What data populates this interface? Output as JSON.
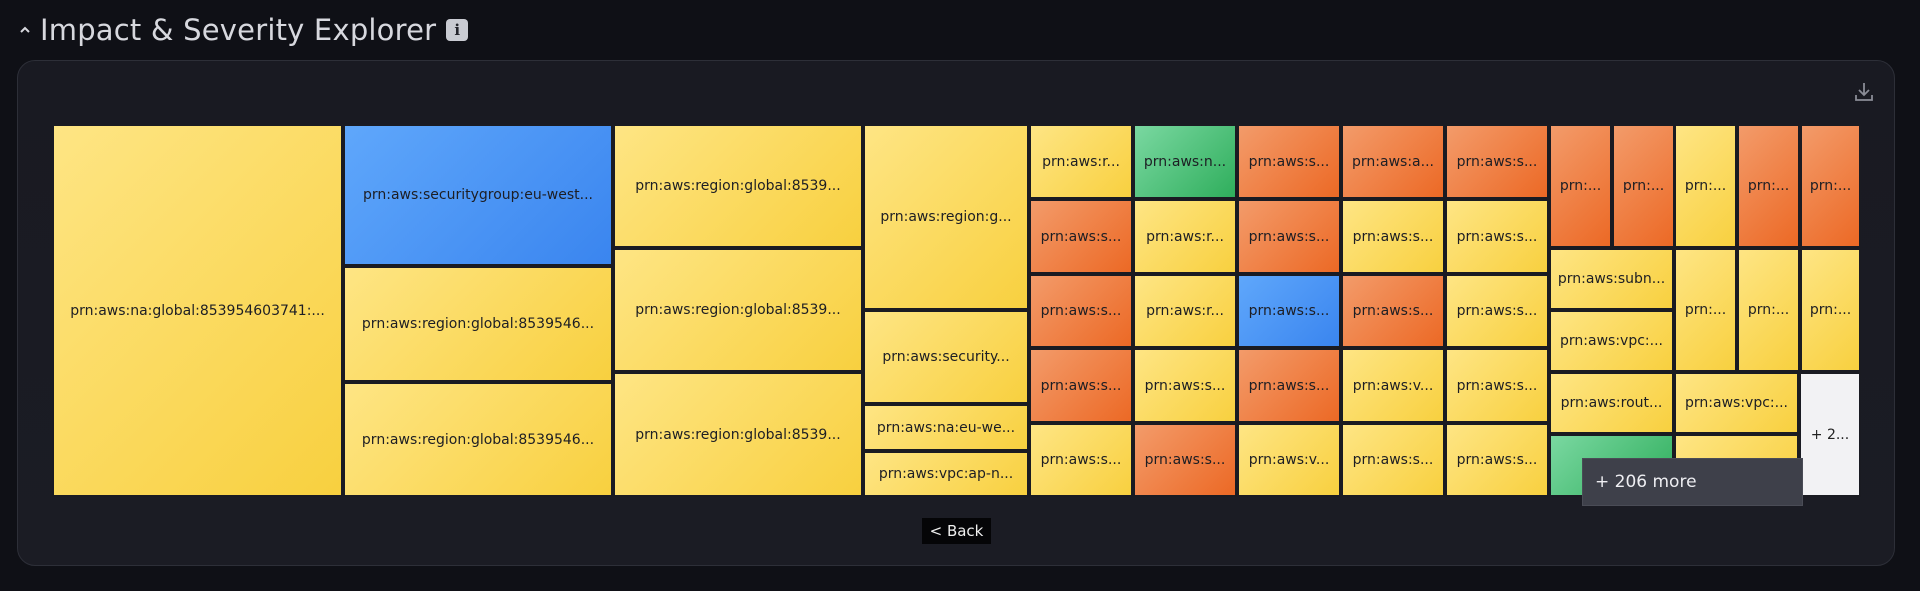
{
  "header": {
    "title": "Impact & Severity Explorer",
    "info_label": "i",
    "collapse_icon": "chevron-up-icon"
  },
  "panel": {
    "download_icon": "download-icon"
  },
  "treemap": {
    "tiles": [
      {
        "label": "prn:aws:na:global:853954603741:...",
        "color": "yellow"
      },
      {
        "label": "prn:aws:securitygroup:eu-west...",
        "color": "blue"
      },
      {
        "label": "prn:aws:region:global:8539546...",
        "color": "yellow"
      },
      {
        "label": "prn:aws:region:global:8539546...",
        "color": "yellow"
      },
      {
        "label": "prn:aws:region:global:8539...",
        "color": "yellow"
      },
      {
        "label": "prn:aws:region:global:8539...",
        "color": "yellow"
      },
      {
        "label": "prn:aws:region:global:8539...",
        "color": "yellow"
      },
      {
        "label": "prn:aws:region:g...",
        "color": "yellow"
      },
      {
        "label": "prn:aws:security...",
        "color": "yellow"
      },
      {
        "label": "prn:aws:na:eu-we...",
        "color": "yellow"
      },
      {
        "label": "prn:aws:vpc:ap-n...",
        "color": "yellow"
      },
      {
        "label": "prn:aws:r...",
        "color": "yellow"
      },
      {
        "label": "prn:aws:s...",
        "color": "orange"
      },
      {
        "label": "prn:aws:s...",
        "color": "orange"
      },
      {
        "label": "prn:aws:s...",
        "color": "orange"
      },
      {
        "label": "prn:aws:s...",
        "color": "yellow"
      },
      {
        "label": "prn:aws:n...",
        "color": "green"
      },
      {
        "label": "prn:aws:r...",
        "color": "yellow"
      },
      {
        "label": "prn:aws:r...",
        "color": "yellow"
      },
      {
        "label": "prn:aws:s...",
        "color": "yellow"
      },
      {
        "label": "prn:aws:s...",
        "color": "orange"
      },
      {
        "label": "prn:aws:s...",
        "color": "orange"
      },
      {
        "label": "prn:aws:s...",
        "color": "orange"
      },
      {
        "label": "prn:aws:s...",
        "color": "blue"
      },
      {
        "label": "prn:aws:s...",
        "color": "orange"
      },
      {
        "label": "prn:aws:v...",
        "color": "yellow"
      },
      {
        "label": "prn:aws:a...",
        "color": "orange"
      },
      {
        "label": "prn:aws:s...",
        "color": "yellow"
      },
      {
        "label": "prn:aws:s...",
        "color": "orange"
      },
      {
        "label": "prn:aws:v...",
        "color": "yellow"
      },
      {
        "label": "prn:aws:s...",
        "color": "yellow"
      },
      {
        "label": "prn:aws:s...",
        "color": "orange"
      },
      {
        "label": "prn:aws:s...",
        "color": "yellow"
      },
      {
        "label": "prn:aws:s...",
        "color": "yellow"
      },
      {
        "label": "prn:aws:s...",
        "color": "yellow"
      },
      {
        "label": "prn:aws:s...",
        "color": "yellow"
      },
      {
        "label": "prn:...",
        "color": "orange"
      },
      {
        "label": "prn:...",
        "color": "orange"
      },
      {
        "label": "prn:aws:subn...",
        "color": "yellow"
      },
      {
        "label": "prn:aws:vpc:...",
        "color": "yellow"
      },
      {
        "label": "prn:aws:rout...",
        "color": "yellow"
      },
      {
        "label": "prn:...",
        "color": "green"
      },
      {
        "label": "prn:...",
        "color": "yellow"
      },
      {
        "label": "prn:...",
        "color": "orange"
      },
      {
        "label": "prn:...",
        "color": "orange"
      },
      {
        "label": "prn:...",
        "color": "yellow"
      },
      {
        "label": "prn:...",
        "color": "yellow"
      },
      {
        "label": "prn:...",
        "color": "yellow"
      },
      {
        "label": "prn:aws:vpc:...",
        "color": "yellow"
      },
      {
        "label": "",
        "color": "yellow"
      },
      {
        "label": "+ 2...",
        "color": "white"
      }
    ],
    "more_label": "+ 206 more",
    "back_label": "< Back"
  }
}
